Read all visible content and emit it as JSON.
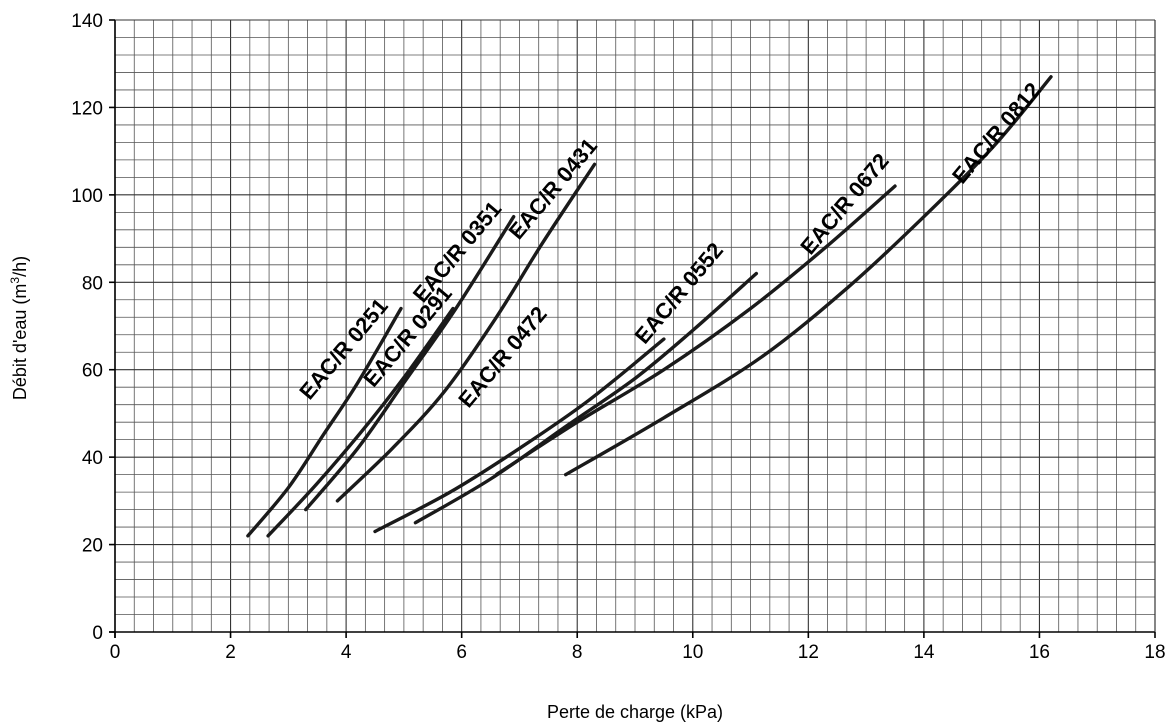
{
  "chart_data": {
    "type": "line",
    "title": "",
    "xlabel": "Perte de charge (kPa)",
    "ylabel_main": "Débit d'eau (m",
    "ylabel_sup": "3",
    "ylabel_end": "/h)",
    "xlim": [
      0,
      18
    ],
    "ylim": [
      0,
      140
    ],
    "x_ticks": [
      0,
      2,
      4,
      6,
      8,
      10,
      12,
      14,
      16,
      18
    ],
    "y_ticks": [
      0,
      20,
      40,
      60,
      80,
      100,
      120,
      140
    ],
    "x_minor_step": 0.333,
    "y_minor_step": 4,
    "grid": true,
    "series": [
      {
        "name": "EAC/R 0251",
        "points": [
          [
            2.3,
            22
          ],
          [
            3.0,
            33
          ],
          [
            3.6,
            45
          ],
          [
            4.2,
            57
          ],
          [
            4.95,
            74
          ]
        ]
      },
      {
        "name": "EAC/R 0291",
        "points": [
          [
            2.65,
            22
          ],
          [
            3.5,
            34
          ],
          [
            4.4,
            48
          ],
          [
            5.1,
            60
          ],
          [
            5.85,
            74
          ]
        ]
      },
      {
        "name": "EAC/R 0351",
        "points": [
          [
            3.3,
            28
          ],
          [
            4.2,
            42
          ],
          [
            5.0,
            57
          ],
          [
            5.9,
            74
          ],
          [
            6.9,
            95
          ]
        ]
      },
      {
        "name": "EAC/R 0431",
        "points": [
          [
            3.85,
            30
          ],
          [
            4.8,
            42
          ],
          [
            5.7,
            55
          ],
          [
            6.6,
            72
          ],
          [
            7.4,
            89
          ],
          [
            8.3,
            107
          ]
        ]
      },
      {
        "name": "EAC/R 0472",
        "points": [
          [
            4.5,
            23
          ],
          [
            5.8,
            32
          ],
          [
            7.0,
            42
          ],
          [
            8.2,
            53
          ],
          [
            9.5,
            67
          ]
        ]
      },
      {
        "name": "EAC/R 0552",
        "points": [
          [
            5.2,
            25
          ],
          [
            6.5,
            35
          ],
          [
            7.8,
            47
          ],
          [
            9.0,
            58
          ],
          [
            10.0,
            69
          ],
          [
            11.1,
            82
          ]
        ]
      },
      {
        "name": "EAC/R 0672",
        "points": [
          [
            6.6,
            36
          ],
          [
            8.0,
            48
          ],
          [
            9.5,
            60
          ],
          [
            11.0,
            74
          ],
          [
            12.3,
            88
          ],
          [
            13.5,
            102
          ]
        ]
      },
      {
        "name": "EAC/R 0812",
        "points": [
          [
            7.8,
            36
          ],
          [
            9.5,
            49
          ],
          [
            11.2,
            63
          ],
          [
            12.7,
            79
          ],
          [
            14.0,
            95
          ],
          [
            15.2,
            111
          ],
          [
            16.2,
            127
          ]
        ]
      }
    ]
  }
}
